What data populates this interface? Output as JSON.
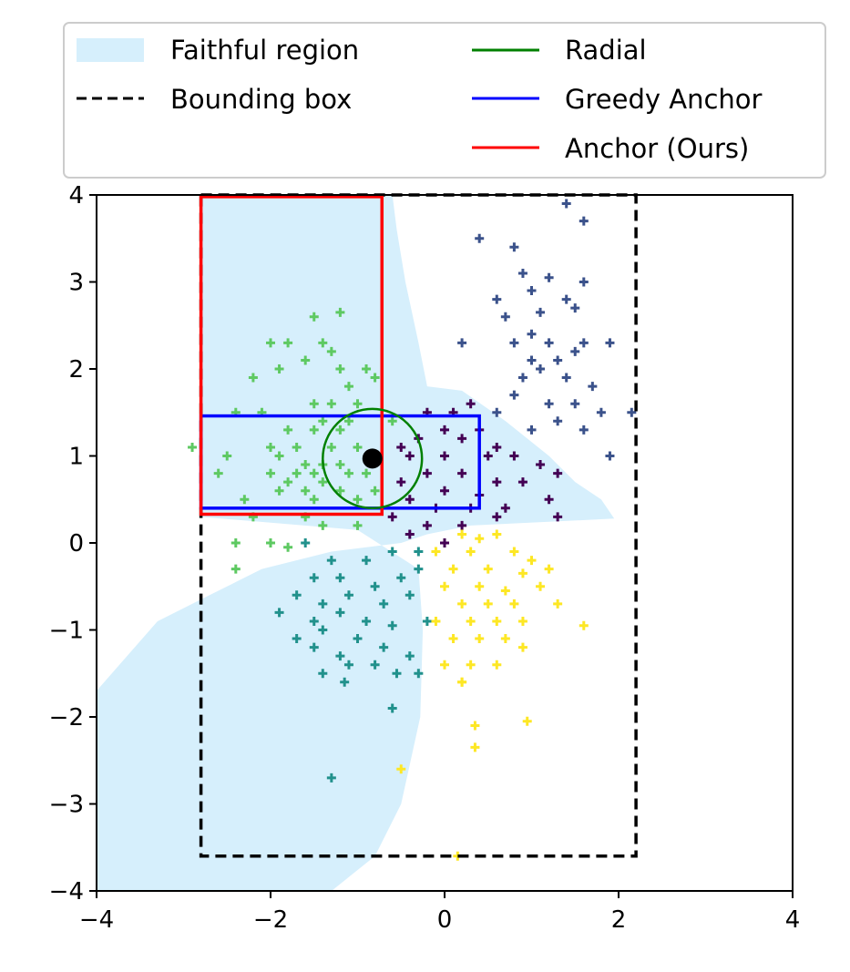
{
  "chart_data": {
    "type": "scatter",
    "title": "",
    "xlabel": "",
    "ylabel": "",
    "xlim": [
      -4,
      4
    ],
    "ylim": [
      -4,
      4
    ],
    "grid": false,
    "x_ticks": [
      "−4",
      "−2",
      "0",
      "2",
      "4"
    ],
    "y_ticks": [
      "−4",
      "−3",
      "−2",
      "−1",
      "0",
      "1",
      "2",
      "3",
      "4"
    ],
    "x_tick_values": [
      -4,
      -2,
      0,
      2,
      4
    ],
    "y_tick_values": [
      -4,
      -3,
      -2,
      -1,
      0,
      1,
      2,
      3,
      4
    ],
    "legend": {
      "placement": "top",
      "entries": [
        {
          "key": "faithful",
          "label": "Faithful region",
          "style": "patch",
          "color": "#d6effc"
        },
        {
          "key": "bbox",
          "label": "Bounding box",
          "style": "dashed",
          "color": "#000000"
        },
        {
          "key": "radial",
          "label": "Radial",
          "style": "line",
          "color": "#008000"
        },
        {
          "key": "greedy",
          "label": "Greedy Anchor",
          "style": "line",
          "color": "#0000ff"
        },
        {
          "key": "anchor",
          "label": "Anchor (Ours)",
          "style": "line",
          "color": "#ff0000"
        }
      ]
    },
    "faithful_region": {
      "color": "#d6effc",
      "polygon": [
        [
          -4,
          4
        ],
        [
          -0.6,
          4
        ],
        [
          -0.55,
          3.6
        ],
        [
          -0.45,
          3
        ],
        [
          -0.3,
          2.3
        ],
        [
          -0.2,
          1.8
        ],
        [
          0.2,
          1.75
        ],
        [
          0.7,
          1.4
        ],
        [
          1.2,
          1
        ],
        [
          1.5,
          0.7
        ],
        [
          1.8,
          0.5
        ],
        [
          1.95,
          0.28
        ],
        [
          0.3,
          0.2
        ],
        [
          -0.2,
          0.1
        ],
        [
          -0.5,
          0
        ],
        [
          -1.3,
          -0.1
        ],
        [
          -2.1,
          -0.3
        ],
        [
          -2.7,
          -0.6
        ],
        [
          -3.3,
          -0.9
        ],
        [
          -4,
          -1.7
        ],
        [
          -4,
          -4
        ],
        [
          -1.3,
          -4
        ],
        [
          -0.8,
          -3.6
        ],
        [
          -0.5,
          -3
        ],
        [
          -0.28,
          -2
        ],
        [
          -0.25,
          -1
        ],
        [
          -0.3,
          -0.3
        ],
        [
          -1.0,
          0.15
        ],
        [
          -2.8,
          0.3
        ],
        [
          -2.8,
          4
        ]
      ]
    },
    "bounding_box": {
      "x0": -2.8,
      "x1": 2.2,
      "y0": -3.6,
      "y1": 4,
      "color": "#000000"
    },
    "radial": {
      "center": [
        -0.83,
        0.97
      ],
      "radius": 0.57,
      "color": "#008000"
    },
    "greedy_anchor": {
      "x0": -2.8,
      "x1": 0.4,
      "y0": 0.4,
      "y1": 1.46,
      "color": "#0000ff"
    },
    "anchor_ours": {
      "x0": -2.8,
      "x1": -0.72,
      "y0": 0.33,
      "y1": 3.98,
      "color": "#ff0000"
    },
    "instance_point": {
      "x": -0.83,
      "y": 0.97,
      "color": "#000000"
    },
    "series": [
      {
        "name": "class-green",
        "color": "#5ec962",
        "points": [
          [
            -1.5,
            2.6
          ],
          [
            -1.2,
            2.65
          ],
          [
            -2.0,
            2.3
          ],
          [
            -1.8,
            2.3
          ],
          [
            -1.4,
            2.3
          ],
          [
            -1.3,
            2.2
          ],
          [
            -1.6,
            2.1
          ],
          [
            -1.2,
            2.0
          ],
          [
            -0.9,
            2.0
          ],
          [
            -2.2,
            1.9
          ],
          [
            -1.9,
            2.0
          ],
          [
            -0.8,
            1.9
          ],
          [
            -1.1,
            1.8
          ],
          [
            -1.5,
            1.6
          ],
          [
            -1.3,
            1.6
          ],
          [
            -1.0,
            1.6
          ],
          [
            -2.4,
            1.5
          ],
          [
            -2.1,
            1.5
          ],
          [
            -1.4,
            1.4
          ],
          [
            -1.1,
            1.4
          ],
          [
            -0.6,
            1.4
          ],
          [
            -1.8,
            1.3
          ],
          [
            -1.5,
            1.3
          ],
          [
            -1.2,
            1.3
          ],
          [
            -2.9,
            1.1
          ],
          [
            -2.0,
            1.1
          ],
          [
            -1.7,
            1.1
          ],
          [
            -1.3,
            1.1
          ],
          [
            -1.0,
            1.1
          ],
          [
            -2.5,
            1.0
          ],
          [
            -1.9,
            1.0
          ],
          [
            -1.6,
            0.9
          ],
          [
            -1.4,
            0.9
          ],
          [
            -1.2,
            0.9
          ],
          [
            -2.0,
            0.8
          ],
          [
            -1.7,
            0.8
          ],
          [
            -1.5,
            0.8
          ],
          [
            -1.1,
            0.8
          ],
          [
            -0.9,
            0.8
          ],
          [
            -2.6,
            0.8
          ],
          [
            -1.8,
            0.7
          ],
          [
            -1.4,
            0.7
          ],
          [
            -1.2,
            0.6
          ],
          [
            -1.9,
            0.6
          ],
          [
            -1.6,
            0.6
          ],
          [
            -1.0,
            0.5
          ],
          [
            -2.3,
            0.5
          ],
          [
            -1.5,
            0.5
          ],
          [
            -0.8,
            0.6
          ],
          [
            -2.2,
            0.3
          ],
          [
            -1.4,
            0.2
          ],
          [
            -1.6,
            0.3
          ],
          [
            -1.0,
            0.2
          ],
          [
            -2.4,
            0.0
          ],
          [
            -2.0,
            0.0
          ],
          [
            -1.8,
            -0.05
          ],
          [
            -2.4,
            -0.3
          ]
        ]
      },
      {
        "name": "class-dark-blue",
        "color": "#3b528b",
        "points": [
          [
            0.4,
            3.5
          ],
          [
            0.8,
            3.4
          ],
          [
            1.4,
            3.9
          ],
          [
            1.6,
            3.7
          ],
          [
            0.9,
            3.1
          ],
          [
            1.2,
            3.05
          ],
          [
            1.6,
            3.0
          ],
          [
            0.6,
            2.8
          ],
          [
            1.0,
            2.9
          ],
          [
            1.4,
            2.8
          ],
          [
            0.7,
            2.6
          ],
          [
            1.1,
            2.65
          ],
          [
            1.5,
            2.7
          ],
          [
            1.9,
            2.3
          ],
          [
            1.0,
            2.4
          ],
          [
            1.2,
            2.3
          ],
          [
            1.6,
            2.3
          ],
          [
            0.8,
            2.3
          ],
          [
            1.0,
            2.1
          ],
          [
            1.3,
            2.1
          ],
          [
            1.5,
            2.2
          ],
          [
            0.2,
            2.3
          ],
          [
            0.9,
            1.9
          ],
          [
            1.1,
            2.0
          ],
          [
            1.4,
            1.9
          ],
          [
            1.7,
            1.8
          ],
          [
            0.8,
            1.7
          ],
          [
            1.2,
            1.6
          ],
          [
            1.5,
            1.6
          ],
          [
            1.8,
            1.5
          ],
          [
            1.3,
            1.4
          ],
          [
            1.6,
            1.3
          ],
          [
            0.6,
            1.5
          ],
          [
            1.0,
            1.3
          ],
          [
            2.15,
            1.5
          ],
          [
            1.9,
            1.0
          ]
        ]
      },
      {
        "name": "class-purple",
        "color": "#440154",
        "points": [
          [
            0.3,
            1.6
          ],
          [
            0.1,
            1.5
          ],
          [
            -0.2,
            1.5
          ],
          [
            0.0,
            1.3
          ],
          [
            0.4,
            1.3
          ],
          [
            -0.5,
            1.1
          ],
          [
            -0.3,
            1.2
          ],
          [
            0.2,
            1.2
          ],
          [
            0.6,
            1.1
          ],
          [
            -0.4,
            1.0
          ],
          [
            0.0,
            1.0
          ],
          [
            0.5,
            1.0
          ],
          [
            0.8,
            1.0
          ],
          [
            1.1,
            0.9
          ],
          [
            1.3,
            0.8
          ],
          [
            -0.2,
            0.8
          ],
          [
            0.2,
            0.8
          ],
          [
            0.6,
            0.7
          ],
          [
            0.9,
            0.7
          ],
          [
            -0.5,
            0.7
          ],
          [
            0.0,
            0.6
          ],
          [
            0.4,
            0.55
          ],
          [
            1.2,
            0.5
          ],
          [
            0.7,
            0.4
          ],
          [
            -0.4,
            0.5
          ],
          [
            -0.1,
            0.4
          ],
          [
            0.3,
            0.4
          ],
          [
            -0.6,
            0.3
          ],
          [
            -0.2,
            0.2
          ],
          [
            0.2,
            0.2
          ],
          [
            0.6,
            0.3
          ],
          [
            -0.4,
            0.1
          ],
          [
            0.0,
            0.0
          ],
          [
            1.3,
            0.3
          ]
        ]
      },
      {
        "name": "class-teal",
        "color": "#21918c",
        "points": [
          [
            -1.6,
            0.0
          ],
          [
            -1.3,
            -0.2
          ],
          [
            -0.9,
            -0.2
          ],
          [
            -0.6,
            -0.1
          ],
          [
            -0.3,
            -0.1
          ],
          [
            -1.5,
            -0.4
          ],
          [
            -1.2,
            -0.4
          ],
          [
            -0.8,
            -0.5
          ],
          [
            -0.5,
            -0.4
          ],
          [
            -1.7,
            -0.6
          ],
          [
            -1.4,
            -0.7
          ],
          [
            -1.1,
            -0.6
          ],
          [
            -0.7,
            -0.7
          ],
          [
            -0.4,
            -0.6
          ],
          [
            -1.9,
            -0.8
          ],
          [
            -1.5,
            -0.9
          ],
          [
            -1.2,
            -0.8
          ],
          [
            -0.9,
            -0.9
          ],
          [
            -0.6,
            -0.95
          ],
          [
            -1.7,
            -1.1
          ],
          [
            -1.4,
            -1.0
          ],
          [
            -1.0,
            -1.1
          ],
          [
            -0.7,
            -1.2
          ],
          [
            -1.5,
            -1.2
          ],
          [
            -1.2,
            -1.3
          ],
          [
            -0.8,
            -1.4
          ],
          [
            -0.4,
            -1.3
          ],
          [
            -1.4,
            -1.5
          ],
          [
            -1.1,
            -1.4
          ],
          [
            -0.3,
            -1.5
          ],
          [
            -1.15,
            -1.6
          ],
          [
            -0.55,
            -1.5
          ],
          [
            -0.6,
            -1.9
          ],
          [
            -1.3,
            -2.7
          ],
          [
            -0.3,
            -0.3
          ],
          [
            -0.2,
            -0.9
          ]
        ]
      },
      {
        "name": "class-yellow",
        "color": "#fde725",
        "points": [
          [
            0.2,
            0.1
          ],
          [
            0.4,
            0.05
          ],
          [
            0.6,
            0.1
          ],
          [
            -0.1,
            -0.1
          ],
          [
            0.3,
            -0.1
          ],
          [
            0.8,
            -0.1
          ],
          [
            1.0,
            -0.2
          ],
          [
            0.1,
            -0.3
          ],
          [
            0.5,
            -0.3
          ],
          [
            0.9,
            -0.35
          ],
          [
            1.2,
            -0.3
          ],
          [
            0.0,
            -0.5
          ],
          [
            0.4,
            -0.5
          ],
          [
            0.7,
            -0.55
          ],
          [
            1.1,
            -0.5
          ],
          [
            0.2,
            -0.7
          ],
          [
            0.5,
            -0.7
          ],
          [
            0.8,
            -0.7
          ],
          [
            1.3,
            -0.7
          ],
          [
            -0.1,
            -0.9
          ],
          [
            0.3,
            -0.9
          ],
          [
            0.6,
            -0.9
          ],
          [
            0.9,
            -0.9
          ],
          [
            0.1,
            -1.1
          ],
          [
            0.4,
            -1.1
          ],
          [
            0.7,
            -1.1
          ],
          [
            0.0,
            -1.4
          ],
          [
            0.3,
            -1.4
          ],
          [
            0.6,
            -1.4
          ],
          [
            0.2,
            -1.6
          ],
          [
            1.6,
            -0.95
          ],
          [
            0.9,
            -1.2
          ],
          [
            0.35,
            -2.1
          ],
          [
            0.35,
            -2.35
          ],
          [
            0.95,
            -2.05
          ],
          [
            0.2,
            -1.6
          ],
          [
            -0.5,
            -2.6
          ],
          [
            0.15,
            -3.6
          ]
        ]
      }
    ]
  }
}
